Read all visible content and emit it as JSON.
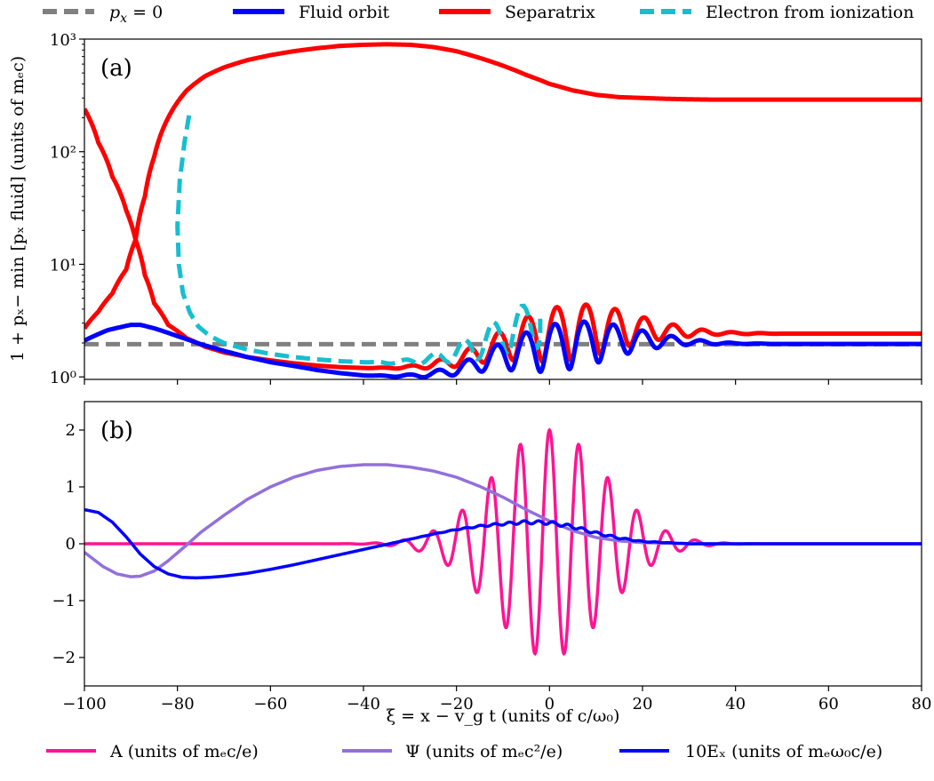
{
  "chart_data": [
    {
      "panel": "(a)",
      "type": "line",
      "ylabel": "1 + p_x − min [p_x fluid] (units of m_e c)",
      "yscale": "log",
      "xlim": [
        -100,
        80
      ],
      "ylim": [
        0.95,
        1000
      ],
      "y_ticks": [
        1,
        10,
        100,
        1000
      ],
      "y_tick_labels": [
        "10⁰",
        "10¹",
        "10²",
        "10³"
      ],
      "grid": false,
      "legend_position": "top, above panel (a)",
      "series": [
        {
          "name": "p_x = 0",
          "color": "#808080",
          "dash": "dashed",
          "points": [
            [
              -100,
              1.95
            ],
            [
              80,
              1.95
            ]
          ]
        },
        {
          "name": "Fluid orbit",
          "color": "#0000ff",
          "dash": "solid",
          "x": [
            -100,
            -95,
            -90,
            -88,
            -85,
            -80,
            -75,
            -70,
            -65,
            -60,
            -55,
            -50,
            -45,
            -40,
            -35,
            -30,
            -25,
            -20,
            -15,
            -10,
            -5,
            0,
            5,
            10,
            15,
            20,
            25,
            30,
            35,
            40,
            50,
            60,
            70,
            80
          ],
          "y": [
            2.1,
            2.6,
            2.9,
            2.9,
            2.7,
            2.3,
            1.95,
            1.7,
            1.5,
            1.35,
            1.25,
            1.15,
            1.08,
            1.03,
            1.02,
            1.02,
            1.06,
            1.15,
            1.35,
            1.6,
            1.8,
            2.0,
            2.15,
            2.2,
            2.2,
            2.15,
            2.1,
            2.05,
            2.0,
            1.98,
            1.96,
            1.96,
            1.96,
            1.96
          ],
          "osc_amp": [
            0,
            0,
            0,
            0,
            0,
            0,
            0,
            0,
            0,
            0,
            0,
            0,
            0,
            0,
            0.01,
            0.03,
            0.06,
            0.1,
            0.18,
            0.28,
            0.38,
            0.45,
            0.45,
            0.4,
            0.3,
            0.2,
            0.12,
            0.06,
            0.03,
            0.01,
            0,
            0,
            0,
            0
          ]
        },
        {
          "name": "Separatrix",
          "color": "#ff0000",
          "dash": "solid",
          "x": [
            -100,
            -97,
            -94,
            -91,
            -89,
            -87,
            -85,
            -82,
            -78,
            -74,
            -70,
            -65,
            -60,
            -55,
            -50,
            -45,
            -40,
            -35,
            -30,
            -25,
            -20,
            -15,
            -10,
            -5,
            0,
            5,
            10,
            15,
            20,
            25,
            30,
            35,
            40,
            50,
            60,
            70,
            80
          ],
          "y": [
            240,
            120,
            60,
            30,
            16.5,
            40,
            90,
            200,
            350,
            470,
            560,
            650,
            720,
            780,
            830,
            870,
            890,
            900,
            890,
            850,
            780,
            680,
            580,
            480,
            400,
            350,
            320,
            305,
            300,
            295,
            292,
            290,
            290,
            290,
            290,
            290,
            290
          ],
          "lower_branch": {
            "x": [
              -100,
              -97,
              -94,
              -91,
              -89,
              -87,
              -85,
              -82,
              -78,
              -74,
              -70,
              -65,
              -60,
              -55,
              -50,
              -45,
              -40,
              -35,
              -30,
              -25,
              -20,
              -15,
              -10,
              -5,
              0,
              5,
              10,
              15,
              20,
              25,
              30,
              35,
              40,
              50,
              60,
              70,
              80
            ],
            "y": [
              2.7,
              3.8,
              5.5,
              9.0,
              16.5,
              8.0,
              4.5,
              2.9,
              2.2,
              1.85,
              1.65,
              1.5,
              1.4,
              1.32,
              1.26,
              1.22,
              1.2,
              1.2,
              1.22,
              1.28,
              1.4,
              1.65,
              2.0,
              2.4,
              2.7,
              2.9,
              2.95,
              2.85,
              2.7,
              2.6,
              2.5,
              2.46,
              2.44,
              2.42,
              2.42,
              2.42,
              2.42
            ],
            "osc_amp": [
              0,
              0,
              0,
              0,
              0,
              0,
              0,
              0,
              0,
              0,
              0,
              0,
              0,
              0,
              0,
              0,
              0,
              0.01,
              0.03,
              0.07,
              0.12,
              0.2,
              0.3,
              0.42,
              0.5,
              0.52,
              0.48,
              0.38,
              0.26,
              0.16,
              0.09,
              0.04,
              0.02,
              0,
              0,
              0,
              0
            ]
          }
        },
        {
          "name": "Electron from ionization",
          "color": "#17becf",
          "dash": "dashed",
          "x": [
            -77.5,
            -78.5,
            -79.5,
            -80,
            -79.7,
            -78.8,
            -77.3,
            -75.5,
            -73,
            -70,
            -65,
            -60,
            -55,
            -50,
            -45,
            -40,
            -35,
            -30,
            -25,
            -20,
            -15,
            -10,
            -5,
            -2
          ],
          "y": [
            210,
            120,
            55,
            22,
            10,
            5.5,
            3.7,
            2.8,
            2.3,
            2.0,
            1.75,
            1.6,
            1.5,
            1.43,
            1.38,
            1.35,
            1.34,
            1.37,
            1.45,
            1.65,
            2.0,
            2.5,
            3.1,
            3.5
          ],
          "osc_amp": [
            0,
            0,
            0,
            0,
            0,
            0,
            0,
            0,
            0,
            0,
            0,
            0,
            0,
            0,
            0,
            0,
            0.02,
            0.05,
            0.1,
            0.18,
            0.28,
            0.38,
            0.45,
            0.48
          ]
        }
      ]
    },
    {
      "panel": "(b)",
      "type": "line",
      "xlabel": "ξ = x − v_g t (units of c/ω₀)",
      "xlim": [
        -100,
        80
      ],
      "ylim": [
        -2.5,
        2.5
      ],
      "x_ticks": [
        -100,
        -80,
        -60,
        -40,
        -20,
        0,
        20,
        40,
        60,
        80
      ],
      "x_tick_labels": [
        "−100",
        "−80",
        "−60",
        "−40",
        "−20",
        "0",
        "20",
        "40",
        "60",
        "80"
      ],
      "y_ticks": [
        -2,
        -1,
        0,
        1,
        2
      ],
      "y_tick_labels": [
        "−2",
        "−1",
        "0",
        "1",
        "2"
      ],
      "grid": false,
      "legend_position": "bottom, below panel (b)",
      "series": [
        {
          "name": "A (units of m_e c/e)",
          "color": "#ff1493",
          "dash": "solid",
          "amplitude": 2.0,
          "center": 0,
          "sigma": 17,
          "wavelength": 6.28
        },
        {
          "name": "Ψ (units of m_e c²/e)",
          "color": "#9370db",
          "dash": "solid",
          "x": [
            -100,
            -96,
            -93,
            -90,
            -88,
            -85,
            -82,
            -78,
            -75,
            -70,
            -65,
            -60,
            -55,
            -50,
            -45,
            -40,
            -35,
            -30,
            -25,
            -20,
            -15,
            -10,
            -5,
            0,
            5,
            10,
            15,
            20,
            25,
            30,
            35,
            40,
            50,
            60,
            70,
            80
          ],
          "y": [
            -0.15,
            -0.4,
            -0.53,
            -0.58,
            -0.57,
            -0.48,
            -0.3,
            -0.02,
            0.2,
            0.5,
            0.78,
            1.0,
            1.17,
            1.29,
            1.36,
            1.39,
            1.39,
            1.35,
            1.28,
            1.17,
            1.01,
            0.82,
            0.6,
            0.4,
            0.23,
            0.11,
            0.05,
            0.02,
            0.01,
            0.0,
            0.0,
            0.0,
            0.0,
            0.0,
            0.0,
            0.0
          ]
        },
        {
          "name": "10E_x (units of m_e ω₀ c/e)",
          "color": "#0000ff",
          "dash": "solid",
          "x": [
            -100,
            -97,
            -94,
            -91,
            -88,
            -85,
            -82,
            -79,
            -76,
            -73,
            -70,
            -65,
            -60,
            -55,
            -50,
            -45,
            -40,
            -35,
            -30,
            -25,
            -20,
            -15,
            -10,
            -5,
            0,
            5,
            10,
            15,
            20,
            25,
            30,
            35,
            40,
            50,
            60,
            70,
            80
          ],
          "y": [
            0.6,
            0.55,
            0.38,
            0.12,
            -0.18,
            -0.4,
            -0.53,
            -0.59,
            -0.6,
            -0.59,
            -0.57,
            -0.52,
            -0.45,
            -0.37,
            -0.28,
            -0.19,
            -0.1,
            -0.01,
            0.08,
            0.17,
            0.25,
            0.31,
            0.35,
            0.38,
            0.37,
            0.3,
            0.19,
            0.1,
            0.04,
            0.02,
            0.0,
            0.0,
            0.0,
            0.0,
            0.0,
            0.0,
            0.0
          ]
        }
      ]
    }
  ],
  "legend_top": [
    {
      "label_main": "p",
      "label_sub": "x",
      "label_rest": " = 0",
      "color": "#808080",
      "style": "dashed"
    },
    {
      "label_main": "Fluid orbit",
      "label_sub": "",
      "label_rest": "",
      "color": "#0000ff",
      "style": "solid"
    },
    {
      "label_main": "Separatrix",
      "label_sub": "",
      "label_rest": "",
      "color": "#ff0000",
      "style": "solid"
    },
    {
      "label_main": "Electron from ionization",
      "label_sub": "",
      "label_rest": "",
      "color": "#17becf",
      "style": "dashed"
    }
  ],
  "legend_bottom": [
    {
      "label": "A (units of mₑc/e)",
      "color": "#ff1493"
    },
    {
      "label": "Ψ (units of mₑc²/e)",
      "color": "#9370db"
    },
    {
      "label": "10Eₓ (units of mₑω₀c/e)",
      "color": "#0000ff"
    }
  ],
  "panel_a_tag": "(a)",
  "panel_b_tag": "(b)",
  "ylabel_a": "1 + pₓ− min [pₓ fluid] (units of mₑc)",
  "xlabel_b": "ξ = x − v_g t (units of c/ω₀)"
}
